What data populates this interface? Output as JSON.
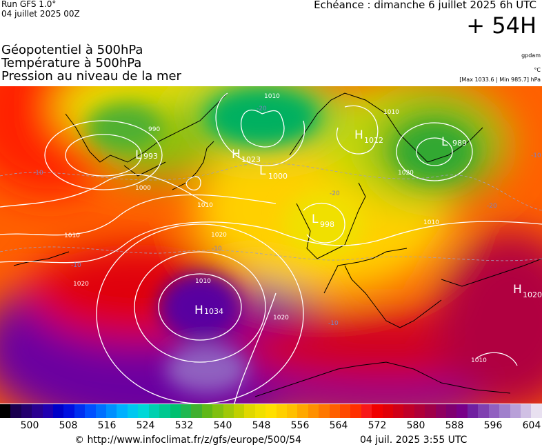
{
  "header": {
    "run": "Run GFS 1.0°",
    "date": "04 juillet 2025 00Z",
    "echeance": "Échéance : dimanche 6 juillet 2025 6h UTC",
    "lead": "+ 54H",
    "params": [
      "Géopotentiel à 500hPa",
      "Température à 500hPa",
      "Pression au niveau de la mer"
    ],
    "unit_geo": "gpdam",
    "unit_temp": "°C",
    "minmax": "[Max 1033.6 | Min 985.7] hPa"
  },
  "map": {
    "pressure_centers": [
      {
        "type": "H",
        "value": "1034"
      },
      {
        "type": "H",
        "value": "1023"
      },
      {
        "type": "L",
        "value": "1000"
      },
      {
        "type": "L",
        "value": "989"
      },
      {
        "type": "H",
        "value": "1012"
      },
      {
        "type": "L",
        "value": "998"
      },
      {
        "type": "H",
        "value": "1020"
      },
      {
        "type": "L",
        "value": "993"
      }
    ],
    "isobar_labels": [
      "1010",
      "1020",
      "1030",
      "1000",
      "990",
      "1010",
      "1020",
      "1010",
      "1010",
      "1020",
      "1010",
      "1010",
      "1020",
      "1010"
    ],
    "temp_labels": [
      "-20",
      "-10",
      "-10",
      "-20",
      "-20",
      "-10",
      "-10",
      "-10"
    ],
    "colors": {
      "isobar": "#ffffff",
      "coast": "#000000"
    }
  },
  "scale": {
    "labels": [
      "500",
      "508",
      "516",
      "524",
      "532",
      "540",
      "548",
      "556",
      "564",
      "572",
      "580",
      "588",
      "596",
      "604"
    ],
    "colors": [
      "#000000",
      "#1a0050",
      "#24006e",
      "#2a0090",
      "#2000b0",
      "#0000c8",
      "#0010e0",
      "#0030f0",
      "#0050ff",
      "#0070ff",
      "#0090ff",
      "#00b0ff",
      "#00c8f0",
      "#00d8d8",
      "#00d0b0",
      "#00c890",
      "#00c070",
      "#20b850",
      "#40b030",
      "#60b818",
      "#80c010",
      "#a0c808",
      "#c0d000",
      "#e0d800",
      "#f0e000",
      "#ffe000",
      "#ffd000",
      "#ffc000",
      "#ffa800",
      "#ff9000",
      "#ff7800",
      "#ff6000",
      "#ff4800",
      "#ff3000",
      "#f81818",
      "#f00000",
      "#e00008",
      "#d00018",
      "#c00028",
      "#b00038",
      "#a00048",
      "#900060",
      "#800070",
      "#780088",
      "#7020a0",
      "#8040b0",
      "#9060c0",
      "#a080cc",
      "#b8a0d8",
      "#d0c0e4",
      "#e8e0f0"
    ]
  },
  "footer": {
    "url": "© http://www.infoclimat.fr/z/gfs/europe/500/54",
    "timestamp": "04 juil. 2025  3:55 UTC"
  }
}
